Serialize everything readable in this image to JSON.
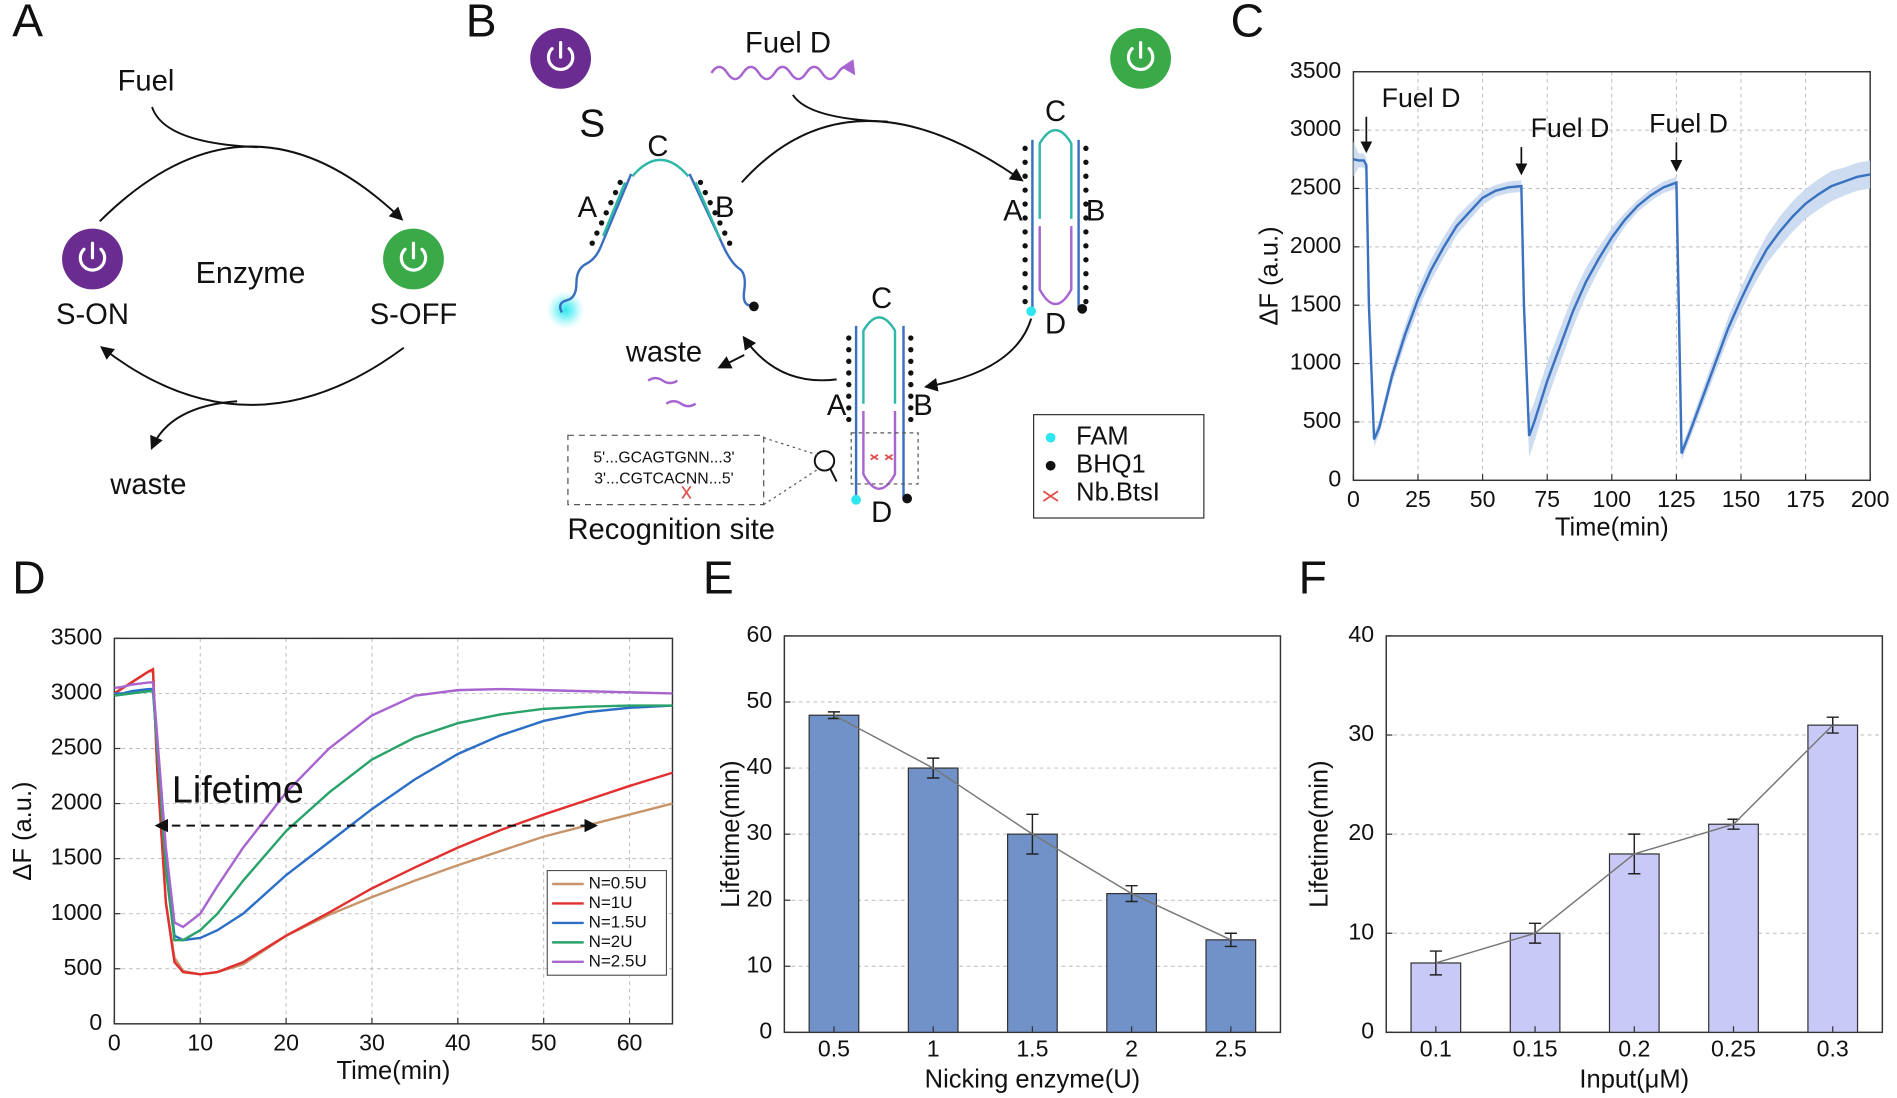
{
  "panel_labels": [
    "A",
    "B",
    "C",
    "D",
    "E",
    "F"
  ],
  "diagram_a": {
    "fuel": "Fuel",
    "enzyme": "Enzyme",
    "s_on": "S-ON",
    "s_off": "S-OFF",
    "waste": "waste"
  },
  "diagram_b": {
    "fuel": "Fuel D",
    "s_label": "S",
    "strand_labels": [
      "A",
      "C",
      "B",
      "C",
      "A",
      "B",
      "D",
      "C",
      "A",
      "B",
      "D"
    ],
    "waste": "waste",
    "recognition": {
      "title": "Recognition site",
      "top": "5'...GCAGTGNN...3'",
      "bottom": "3'...CGTCACNN...5'"
    },
    "legend": [
      "FAM",
      "BHQ1",
      "Nb.BtsI"
    ]
  },
  "chart_data": [
    {
      "type": "line",
      "xlabel": "Time(min)",
      "ylabel": "ΔF (a.u.)",
      "grid": true,
      "xlim": [
        0,
        200
      ],
      "xticks": [
        0,
        25,
        50,
        75,
        100,
        125,
        150,
        175,
        200
      ],
      "ylim": [
        0,
        3500
      ],
      "yticks": [
        0,
        500,
        1000,
        1500,
        2000,
        2500,
        3000,
        3500
      ],
      "annotations": [
        {
          "text": "Fuel D",
          "x": 5
        },
        {
          "text": "Fuel D",
          "x": 65
        },
        {
          "text": "Fuel D",
          "x": 125
        }
      ],
      "x": [
        0,
        2,
        4,
        5,
        6,
        8,
        10,
        15,
        20,
        25,
        30,
        35,
        40,
        45,
        50,
        55,
        60,
        65,
        66,
        68,
        70,
        75,
        80,
        85,
        90,
        95,
        100,
        105,
        110,
        115,
        120,
        125,
        126,
        127,
        130,
        135,
        140,
        145,
        150,
        155,
        160,
        165,
        170,
        175,
        180,
        185,
        190,
        195,
        200
      ],
      "series": [
        {
          "color": "#3a72c0",
          "band_color": "#c8d8ee",
          "values": [
            2750,
            2740,
            2740,
            2700,
            1500,
            350,
            450,
            900,
            1250,
            1550,
            1800,
            2000,
            2180,
            2300,
            2420,
            2480,
            2510,
            2520,
            1500,
            380,
            500,
            850,
            1150,
            1450,
            1700,
            1900,
            2080,
            2230,
            2350,
            2440,
            2510,
            2550,
            1400,
            230,
            400,
            700,
            1000,
            1300,
            1550,
            1780,
            1980,
            2130,
            2260,
            2370,
            2450,
            2520,
            2560,
            2600,
            2620
          ],
          "errors": [
            150,
            60,
            60,
            60,
            100,
            60,
            60,
            70,
            80,
            90,
            90,
            90,
            80,
            70,
            60,
            50,
            50,
            50,
            150,
            180,
            170,
            160,
            150,
            140,
            120,
            100,
            80,
            60,
            50,
            50,
            50,
            50,
            100,
            60,
            60,
            70,
            80,
            90,
            100,
            110,
            120,
            130,
            130,
            130,
            130,
            130,
            120,
            120,
            120
          ]
        }
      ]
    },
    {
      "type": "line",
      "xlabel": "Time(min)",
      "ylabel": "ΔF (a.u.)",
      "grid": true,
      "legend": "lower right",
      "xlim": [
        0,
        65
      ],
      "xticks": [
        0,
        10,
        20,
        30,
        40,
        50,
        60
      ],
      "ylim": [
        0,
        3500
      ],
      "yticks": [
        0,
        500,
        1000,
        1500,
        2000,
        2500,
        3000,
        3500
      ],
      "annotations": [
        {
          "text": "Lifetime",
          "x": [
            5,
            56
          ],
          "y": 1800
        }
      ],
      "x": [
        0,
        1,
        2,
        3,
        4,
        4.5,
        5,
        6,
        7,
        8,
        10,
        12,
        15,
        20,
        25,
        30,
        35,
        40,
        45,
        50,
        55,
        60,
        65
      ],
      "series": [
        {
          "name": "N=0.5U",
          "color": "#c8956b",
          "values": [
            3000,
            3050,
            3100,
            3150,
            3200,
            3200,
            2300,
            1100,
            600,
            480,
            450,
            470,
            540,
            800,
            990,
            1150,
            1300,
            1440,
            1570,
            1700,
            1800,
            1900,
            2000
          ]
        },
        {
          "name": "N=1U",
          "color": "#e03030",
          "values": [
            3000,
            3050,
            3100,
            3150,
            3200,
            3220,
            2300,
            1100,
            560,
            470,
            450,
            470,
            560,
            800,
            1010,
            1230,
            1420,
            1600,
            1760,
            1900,
            2030,
            2160,
            2280
          ]
        },
        {
          "name": "N=1.5U",
          "color": "#2b6fc6",
          "values": [
            3000,
            3000,
            3020,
            3030,
            3040,
            3040,
            2500,
            1500,
            800,
            760,
            780,
            850,
            1000,
            1350,
            1650,
            1950,
            2220,
            2450,
            2620,
            2750,
            2830,
            2870,
            2890
          ]
        },
        {
          "name": "N=2U",
          "color": "#2aa36b",
          "values": [
            2980,
            2990,
            3000,
            3010,
            3020,
            3020,
            2500,
            1400,
            760,
            760,
            850,
            1000,
            1300,
            1750,
            2100,
            2400,
            2600,
            2730,
            2810,
            2860,
            2880,
            2890,
            2890
          ]
        },
        {
          "name": "N=2.5U",
          "color": "#a865d0",
          "values": [
            3050,
            3060,
            3080,
            3090,
            3100,
            3100,
            2600,
            1600,
            920,
            880,
            1000,
            1250,
            1600,
            2100,
            2500,
            2800,
            2980,
            3030,
            3040,
            3030,
            3020,
            3010,
            3000
          ]
        }
      ]
    },
    {
      "type": "bar",
      "xlabel": "Nicking enzyme(U)",
      "ylabel": "Lifetime(min)",
      "grid": true,
      "trend_line": true,
      "color": "#7092c8",
      "ylim": [
        0,
        60
      ],
      "yticks": [
        0,
        10,
        20,
        30,
        40,
        50,
        60
      ],
      "categories": [
        "0.5",
        "1",
        "1.5",
        "2",
        "2.5"
      ],
      "values": [
        48,
        40,
        30,
        21,
        14
      ],
      "errors": [
        0.5,
        1.5,
        3,
        1.2,
        1
      ]
    },
    {
      "type": "bar",
      "xlabel": "Input(μM)",
      "ylabel": "Lifetime(min)",
      "grid": true,
      "trend_line": true,
      "color": "#c9c9f7",
      "ylim": [
        0,
        40
      ],
      "yticks": [
        0,
        10,
        20,
        30,
        40
      ],
      "categories": [
        "0.1",
        "0.15",
        "0.2",
        "0.25",
        "0.3"
      ],
      "values": [
        7,
        10,
        18,
        21,
        31
      ],
      "errors": [
        1.2,
        1,
        2,
        0.5,
        0.8
      ]
    }
  ]
}
